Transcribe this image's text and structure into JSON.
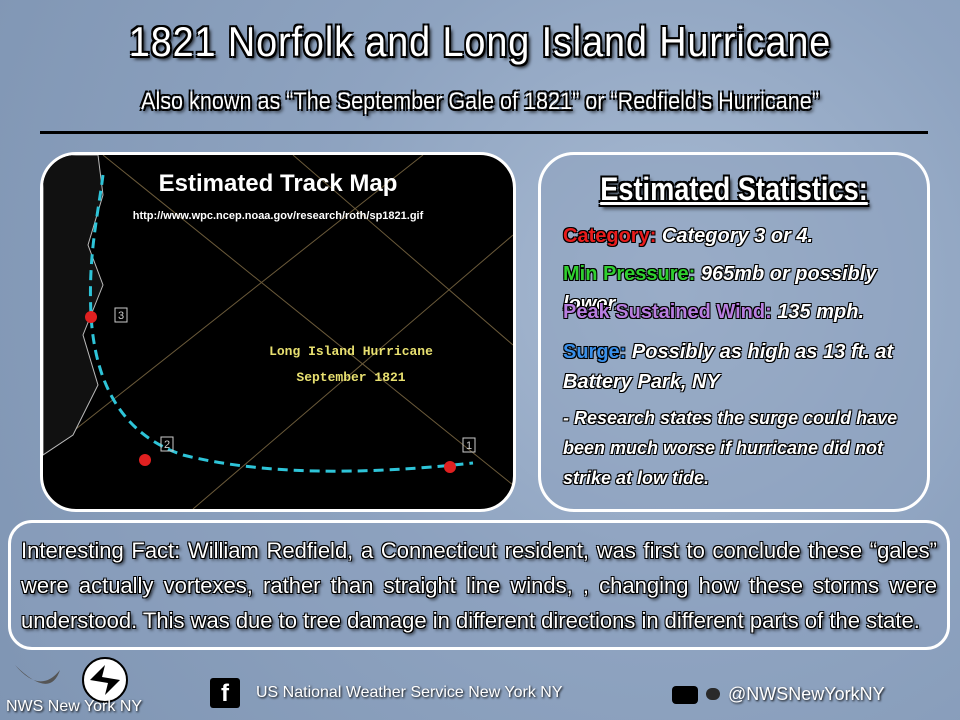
{
  "header": {
    "title": "1821 Norfolk and Long Island Hurricane",
    "subtitle": "Also known as “The September Gale of 1821” or “Redfield’s Hurricane”"
  },
  "map": {
    "title": "Estimated Track Map",
    "url": "http://www.wpc.ncep.noaa.gov/research/roth/sp1821.gif",
    "name": "Long Island Hurricane",
    "date": "September 1821",
    "markers": [
      "1",
      "2",
      "3"
    ]
  },
  "stats": {
    "title": "Estimated Statistics:",
    "items": [
      {
        "label": "Category:",
        "text": "Category 3 or 4."
      },
      {
        "label": "Min Pressure:",
        "text": "965mb or possibly lower."
      },
      {
        "label": "Peak Sustained Wind:",
        "text": "135 mph."
      },
      {
        "label": "Surge:",
        "text": "Possibly as high as 13 ft. at Battery Park, NY"
      }
    ],
    "note": "- Research states the surge could have been much worse if hurricane did not strike at low tide."
  },
  "fact": {
    "text": "Interesting Fact: William Redfield, a Connecticut resident, was first to conclude these “gales” were actually vortexes, rather than straight line winds, , changing how these storms were understood. This was due to tree damage in different directions in different parts of the state."
  },
  "footer": {
    "office": "NWS New York NY",
    "facebook": "US National Weather Service New York NY",
    "handle": "@NWSNewYorkNY"
  }
}
